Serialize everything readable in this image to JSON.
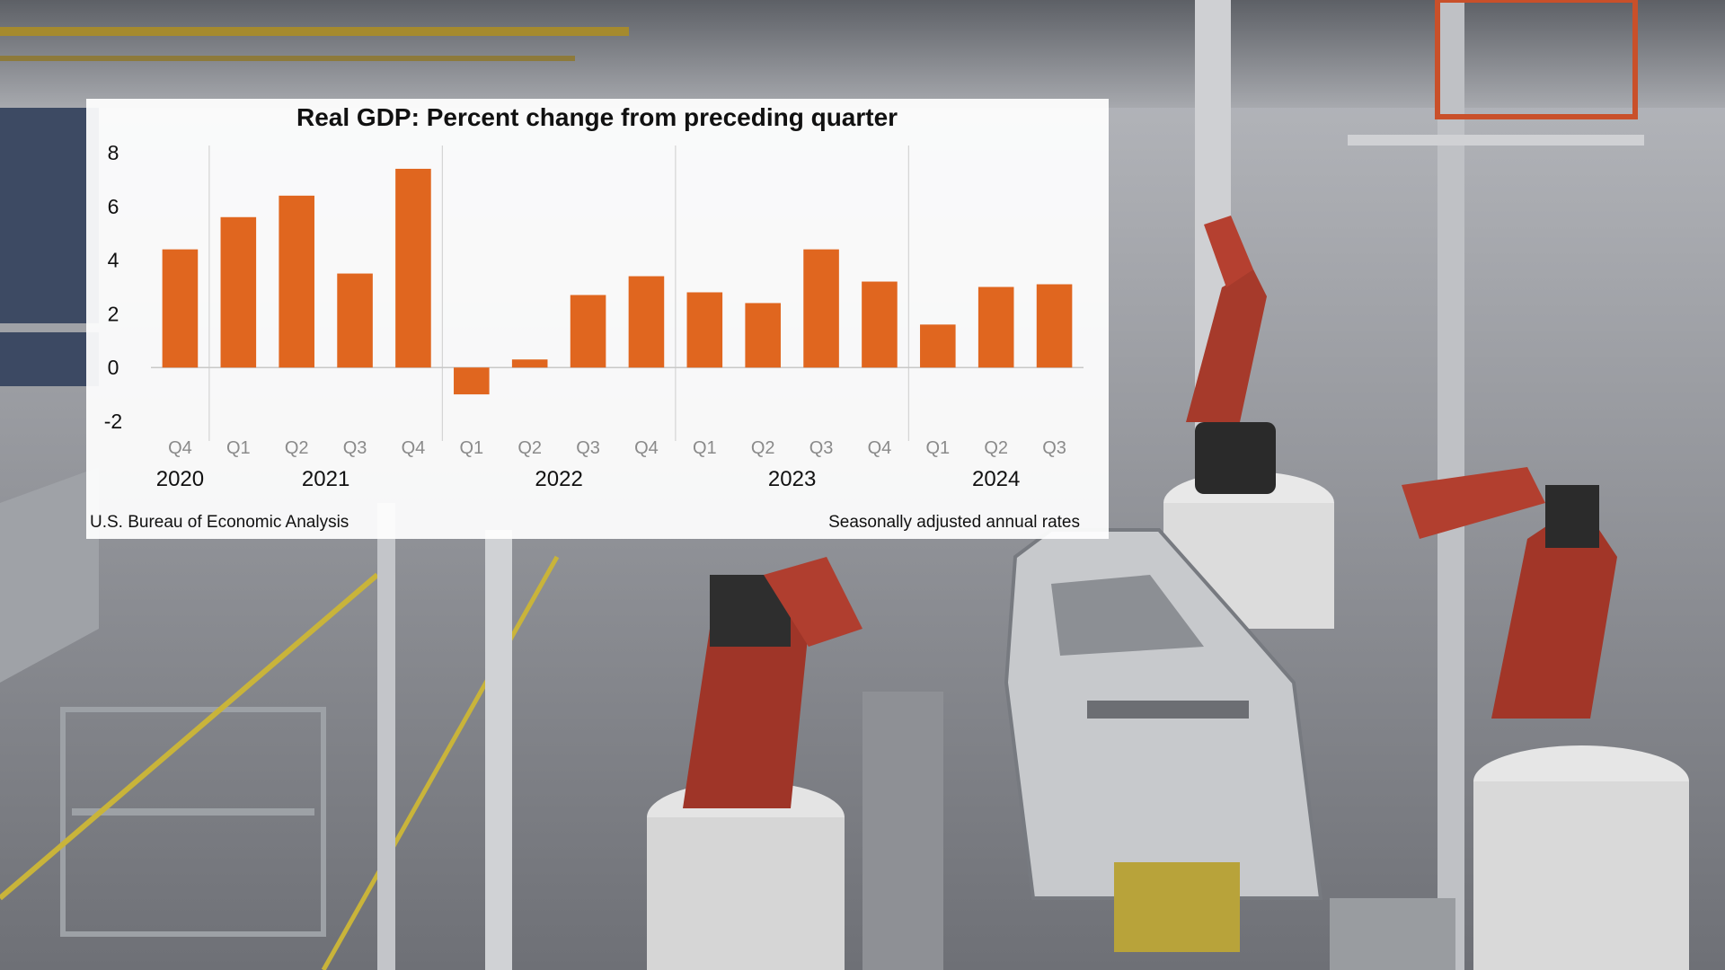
{
  "colors": {
    "bar": "#e0661f",
    "panel": "#ffffff",
    "text": "#111111",
    "quarter_label": "#8a8a8a",
    "year_divider": "#d4d4d4"
  },
  "chart_data": {
    "type": "bar",
    "title": "Real GDP:  Percent change from preceding quarter",
    "categories": [
      "Q4",
      "Q1",
      "Q2",
      "Q3",
      "Q4",
      "Q1",
      "Q2",
      "Q3",
      "Q4",
      "Q1",
      "Q2",
      "Q3",
      "Q4",
      "Q1",
      "Q2",
      "Q3"
    ],
    "years": [
      {
        "label": "2020",
        "start": 0,
        "end": 0
      },
      {
        "label": "2021",
        "start": 1,
        "end": 4
      },
      {
        "label": "2022",
        "start": 5,
        "end": 8
      },
      {
        "label": "2023",
        "start": 9,
        "end": 12
      },
      {
        "label": "2024",
        "start": 13,
        "end": 15
      }
    ],
    "values": [
      4.4,
      5.6,
      6.4,
      3.5,
      7.4,
      -1.0,
      0.3,
      2.7,
      3.4,
      2.8,
      2.4,
      4.4,
      3.2,
      1.6,
      3.0,
      3.1
    ],
    "yticks": [
      8,
      6,
      4,
      2,
      0,
      -2
    ],
    "ylim": [
      -2,
      8
    ],
    "grid": false,
    "source": "U.S. Bureau of Economic Analysis",
    "note": "Seasonally adjusted annual rates"
  }
}
